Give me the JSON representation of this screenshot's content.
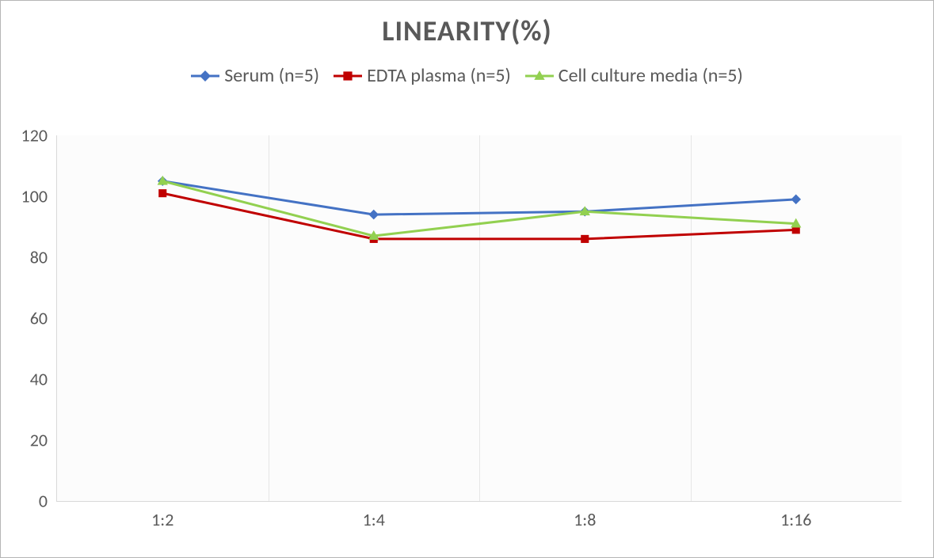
{
  "chart": {
    "type": "line",
    "title": "LINEARITY(%)",
    "title_fontsize": 36,
    "title_color": "#595959",
    "background_color": "#ffffff",
    "plot_background_color": "#fcfcfc",
    "border_color": "#b6b6b6",
    "grid_color": "#e6e6e6",
    "axis_label_color": "#595959",
    "axis_label_fontsize": 22,
    "legend": {
      "position": "top",
      "fontsize": 24,
      "color": "#595959"
    },
    "x": {
      "categories": [
        "1:2",
        "1:4",
        "1:8",
        "1:16"
      ]
    },
    "y": {
      "min": 0,
      "max": 120,
      "tick_step": 20,
      "ticks": [
        0,
        20,
        40,
        60,
        80,
        100,
        120
      ]
    },
    "series": [
      {
        "name": "Serum (n=5)",
        "color": "#4472c4",
        "marker": "diamond",
        "marker_size": 9,
        "line_width": 3,
        "values": [
          105,
          94,
          95,
          99
        ]
      },
      {
        "name": "EDTA plasma (n=5)",
        "color": "#c00000",
        "marker": "square",
        "marker_size": 9,
        "line_width": 3,
        "values": [
          101,
          86,
          86,
          89
        ]
      },
      {
        "name": "Cell culture media (n=5)",
        "color": "#92d050",
        "marker": "triangle",
        "marker_size": 10,
        "line_width": 3,
        "values": [
          105,
          87,
          95,
          91
        ]
      }
    ]
  }
}
